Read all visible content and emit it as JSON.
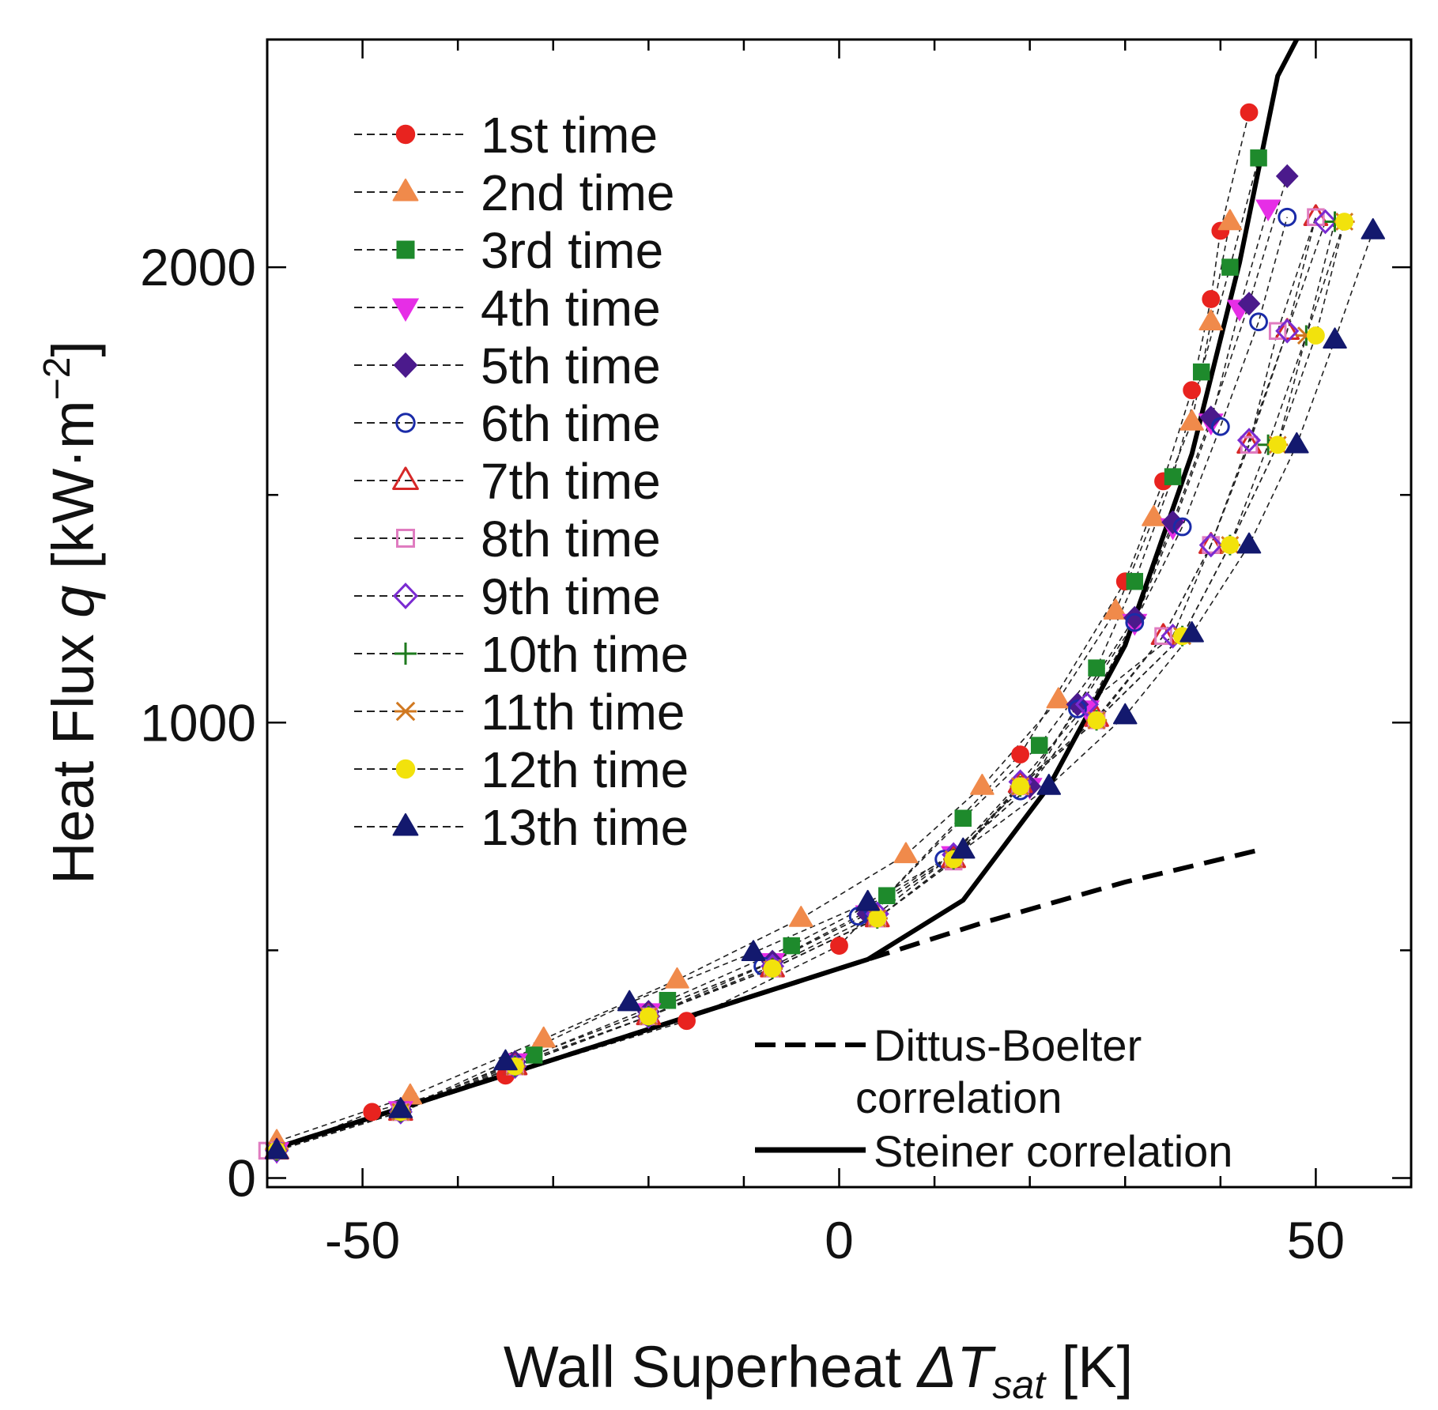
{
  "chart_data": {
    "type": "scatter",
    "title": "",
    "xlabel": "Wall Superheat ",
    "xlabel_symbol": "ΔT",
    "xlabel_subscript": "sat",
    "xlabel_unit": " [K]",
    "ylabel": "Heat Flux ",
    "ylabel_symbol": "q",
    "ylabel_unit": " [kW·m",
    "ylabel_exp": "−2",
    "ylabel_close": "]",
    "xlim": [
      -60,
      60
    ],
    "ylim": [
      -20,
      2500
    ],
    "xticks": [
      -50,
      0,
      50
    ],
    "yticks": [
      0,
      1000,
      2000
    ],
    "xtick_labels": [
      "-50",
      "0",
      "50"
    ],
    "ytick_labels": [
      "0",
      "1000",
      "2000"
    ],
    "legend_position": "top-left",
    "series": [
      {
        "name": "1st time",
        "marker": "circle-filled",
        "color": "#e8231f",
        "x": [
          -59,
          -49,
          -35,
          -16,
          0,
          19,
          30,
          34,
          37,
          39,
          40,
          43
        ],
        "y": [
          60,
          145,
          225,
          345,
          510,
          930,
          1310,
          1530,
          1730,
          1930,
          2080,
          2340
        ]
      },
      {
        "name": "2nd time",
        "marker": "triangle-up-filled",
        "color": "#f08a4b",
        "x": [
          -59,
          -45,
          -31,
          -17,
          -4,
          7,
          15,
          23,
          29,
          33,
          37,
          39,
          41
        ],
        "y": [
          80,
          180,
          305,
          435,
          570,
          710,
          860,
          1050,
          1245,
          1450,
          1660,
          1880,
          2100
        ]
      },
      {
        "name": "3rd time",
        "marker": "square-filled",
        "color": "#1e8a2c",
        "x": [
          -59,
          -46,
          -32,
          -18,
          -5,
          5,
          13,
          21,
          27,
          31,
          35,
          38,
          41,
          44
        ],
        "y": [
          60,
          150,
          270,
          390,
          510,
          620,
          790,
          950,
          1120,
          1310,
          1540,
          1770,
          2000,
          2240
        ]
      },
      {
        "name": "4th time",
        "marker": "triangle-down-filled",
        "color": "#e62ee6",
        "x": [
          -59,
          -46,
          -34,
          -20,
          -7,
          3,
          12,
          20,
          26,
          31,
          35,
          39,
          42,
          45
        ],
        "y": [
          60,
          150,
          255,
          365,
          475,
          580,
          710,
          860,
          1030,
          1220,
          1430,
          1660,
          1910,
          2130
        ]
      },
      {
        "name": "5th time",
        "marker": "diamond-filled",
        "color": "#4b1a8c",
        "x": [
          -59,
          -46,
          -34,
          -20,
          -7,
          3,
          12,
          20,
          25,
          31,
          35,
          39,
          43,
          47
        ],
        "y": [
          60,
          150,
          255,
          365,
          475,
          580,
          710,
          860,
          1040,
          1230,
          1440,
          1670,
          1920,
          2200
        ]
      },
      {
        "name": "6th time",
        "marker": "circle-open",
        "color": "#1a2ba8",
        "x": [
          -59,
          -46,
          -34,
          -20,
          -8,
          2,
          11,
          19,
          25,
          31,
          36,
          40,
          44,
          47
        ],
        "y": [
          60,
          145,
          250,
          355,
          465,
          575,
          700,
          850,
          1030,
          1220,
          1430,
          1650,
          1880,
          2110
        ]
      },
      {
        "name": "7th time",
        "marker": "triangle-up-open",
        "color": "#d62828",
        "x": [
          -59,
          -46,
          -34,
          -20,
          -7,
          4,
          12,
          19,
          27,
          34,
          39,
          43,
          47,
          50
        ],
        "y": [
          60,
          145,
          245,
          355,
          460,
          570,
          700,
          865,
          1010,
          1190,
          1390,
          1610,
          1860,
          2110
        ]
      },
      {
        "name": "8th time",
        "marker": "square-open",
        "color": "#e07cc0",
        "x": [
          -60,
          -46,
          -34,
          -20,
          -7,
          4,
          12,
          19,
          27,
          34,
          39,
          43,
          46,
          50
        ],
        "y": [
          60,
          145,
          245,
          355,
          460,
          570,
          695,
          860,
          1005,
          1190,
          1390,
          1610,
          1860,
          2110
        ]
      },
      {
        "name": "9th time",
        "marker": "diamond-open",
        "color": "#7a2bd1",
        "x": [
          -59,
          -46,
          -34,
          -20,
          -7,
          4,
          12,
          19,
          26,
          35,
          39,
          43,
          47,
          51
        ],
        "y": [
          60,
          145,
          245,
          355,
          465,
          580,
          710,
          870,
          1040,
          1190,
          1390,
          1620,
          1860,
          2100
        ]
      },
      {
        "name": "10th time",
        "marker": "plus",
        "color": "#1e7a1e",
        "x": [
          -59,
          -46,
          -34,
          -20,
          -7,
          4,
          12,
          19,
          27,
          36,
          41,
          45,
          49,
          52
        ],
        "y": [
          60,
          145,
          245,
          355,
          460,
          570,
          700,
          860,
          1005,
          1190,
          1390,
          1610,
          1850,
          2100
        ]
      },
      {
        "name": "11th time",
        "marker": "x-cross",
        "color": "#d07820",
        "x": [
          -59,
          -46,
          -34,
          -20,
          -7,
          4,
          12,
          19,
          27,
          36,
          41,
          46,
          49,
          53
        ],
        "y": [
          60,
          145,
          245,
          355,
          460,
          570,
          700,
          860,
          1005,
          1190,
          1390,
          1610,
          1850,
          2100
        ]
      },
      {
        "name": "12th time",
        "marker": "circle-filled",
        "color": "#f2e20c",
        "x": [
          -59,
          -46,
          -34,
          -20,
          -7,
          4,
          12,
          19,
          27,
          36,
          41,
          46,
          50,
          53
        ],
        "y": [
          60,
          145,
          245,
          355,
          460,
          570,
          700,
          860,
          1005,
          1190,
          1390,
          1610,
          1850,
          2100
        ]
      },
      {
        "name": "13th time",
        "marker": "triangle-up-filled",
        "color": "#13196e",
        "x": [
          -59,
          -46,
          -35,
          -22,
          -9,
          3,
          13,
          22,
          30,
          37,
          43,
          48,
          52,
          56
        ],
        "y": [
          60,
          150,
          255,
          385,
          495,
          605,
          720,
          860,
          1015,
          1195,
          1390,
          1610,
          1840,
          2080
        ]
      }
    ],
    "correlations": [
      {
        "name": "Dittus-Boelter",
        "name_line2": "correlation",
        "style": "dashed",
        "color": "#000000",
        "x": [
          -60,
          -45,
          -30,
          -15,
          0,
          15,
          30,
          44
        ],
        "y": [
          60,
          160,
          260,
          360,
          460,
          560,
          650,
          720
        ]
      },
      {
        "name": "Steiner correlation",
        "name_line2": "",
        "style": "solid",
        "color": "#000000",
        "x": [
          -60,
          -45,
          -30,
          -15,
          0,
          3,
          13,
          22,
          30,
          37,
          42,
          46,
          48
        ],
        "y": [
          60,
          160,
          260,
          360,
          460,
          480,
          610,
          860,
          1170,
          1590,
          2010,
          2420,
          2500
        ]
      }
    ]
  }
}
